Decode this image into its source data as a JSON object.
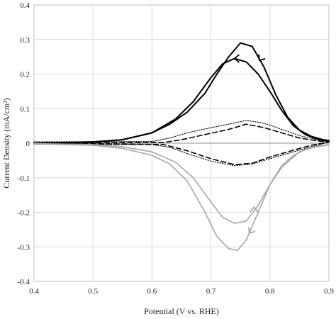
{
  "chart_data": {
    "type": "line",
    "title": "",
    "xlabel": "Potential (V vs. RHE)",
    "ylabel": "Current Density (mA/cm²)",
    "xlim": [
      0.4,
      0.9
    ],
    "ylim": [
      -0.4,
      0.4
    ],
    "x_ticks": [
      0.4,
      0.5,
      0.6,
      0.7,
      0.8,
      0.9
    ],
    "y_ticks": [
      -0.4,
      -0.3,
      -0.2,
      -0.1,
      0,
      0.1,
      0.2,
      0.3,
      0.4
    ],
    "x_tick_labels": [
      "0.4",
      "0.5",
      "0.6",
      "0.7",
      "0.8",
      "0.9"
    ],
    "y_tick_labels": [
      "-0.4",
      "-0.3",
      "-0.2",
      "-0.1",
      "0",
      "0.1",
      "0.2",
      "0.3",
      "0.4"
    ],
    "grid": true,
    "series": [
      {
        "style": "solid",
        "color": "#000000",
        "x": [
          0.4,
          0.5,
          0.55,
          0.6,
          0.63,
          0.66,
          0.69,
          0.71,
          0.73,
          0.75,
          0.77,
          0.79,
          0.81,
          0.83,
          0.85,
          0.87,
          0.89,
          0.9
        ],
        "y": [
          0.0,
          0.003,
          0.01,
          0.03,
          0.055,
          0.09,
          0.145,
          0.2,
          0.25,
          0.29,
          0.28,
          0.22,
          0.14,
          0.075,
          0.038,
          0.02,
          0.01,
          0.008
        ]
      },
      {
        "style": "solid",
        "color": "#000000",
        "x": [
          0.9,
          0.88,
          0.86,
          0.84,
          0.82,
          0.8,
          0.78,
          0.76,
          0.74,
          0.72,
          0.7,
          0.67,
          0.64,
          0.6,
          0.55,
          0.5,
          0.4
        ],
        "y": [
          0.006,
          0.012,
          0.025,
          0.05,
          0.095,
          0.15,
          0.2,
          0.235,
          0.245,
          0.23,
          0.19,
          0.12,
          0.07,
          0.03,
          0.01,
          0.004,
          0.0
        ]
      },
      {
        "style": "dotted",
        "color": "#000000",
        "x": [
          0.4,
          0.6,
          0.63,
          0.66,
          0.7,
          0.73,
          0.76,
          0.79,
          0.82,
          0.85,
          0.88,
          0.9,
          0.87,
          0.84,
          0.8,
          0.77,
          0.74,
          0.7,
          0.66,
          0.63,
          0.6,
          0.4
        ],
        "y": [
          0.004,
          0.005,
          0.015,
          0.03,
          0.045,
          0.055,
          0.066,
          0.058,
          0.04,
          0.022,
          0.01,
          0.003,
          -0.01,
          -0.025,
          -0.045,
          -0.06,
          -0.065,
          -0.052,
          -0.03,
          -0.012,
          -0.004,
          -0.003
        ]
      },
      {
        "style": "dashed",
        "color": "#000000",
        "x": [
          0.4,
          0.62,
          0.65,
          0.69,
          0.73,
          0.76,
          0.79,
          0.82,
          0.85,
          0.88,
          0.9,
          0.87,
          0.84,
          0.8,
          0.77,
          0.74,
          0.7,
          0.66,
          0.62,
          0.4
        ],
        "y": [
          0.0,
          0.002,
          0.01,
          0.025,
          0.04,
          0.055,
          0.045,
          0.03,
          0.015,
          0.007,
          0.003,
          -0.006,
          -0.02,
          -0.04,
          -0.058,
          -0.062,
          -0.045,
          -0.022,
          -0.004,
          0.0
        ]
      },
      {
        "style": "solid",
        "color": "#a6a6a6",
        "x": [
          0.4,
          0.5,
          0.55,
          0.6,
          0.63,
          0.66,
          0.69,
          0.71,
          0.73,
          0.745,
          0.76,
          0.78,
          0.8,
          0.82,
          0.84,
          0.86,
          0.88,
          0.9
        ],
        "y": [
          -0.002,
          -0.006,
          -0.015,
          -0.035,
          -0.06,
          -0.11,
          -0.2,
          -0.27,
          -0.305,
          -0.31,
          -0.28,
          -0.2,
          -0.12,
          -0.065,
          -0.035,
          -0.018,
          -0.01,
          -0.005
        ]
      },
      {
        "style": "solid",
        "color": "#a6a6a6",
        "x": [
          0.9,
          0.88,
          0.85,
          0.82,
          0.8,
          0.78,
          0.76,
          0.74,
          0.72,
          0.7,
          0.67,
          0.64,
          0.6,
          0.55,
          0.5,
          0.4
        ],
        "y": [
          -0.004,
          -0.008,
          -0.025,
          -0.07,
          -0.12,
          -0.18,
          -0.225,
          -0.232,
          -0.215,
          -0.17,
          -0.1,
          -0.055,
          -0.025,
          -0.01,
          -0.004,
          -0.001
        ]
      }
    ],
    "arrows": [
      {
        "series": 0,
        "x": 0.782,
        "y": 0.24,
        "direction": "down-left",
        "color": "#000000"
      },
      {
        "series": 1,
        "x": 0.74,
        "y": 0.245,
        "direction": "left",
        "color": "#000000"
      },
      {
        "series": 4,
        "x": 0.765,
        "y": -0.26,
        "direction": "down-left",
        "color": "#a6a6a6"
      },
      {
        "series": 5,
        "x": 0.773,
        "y": -0.185,
        "direction": "up",
        "color": "#a6a6a6"
      }
    ]
  }
}
